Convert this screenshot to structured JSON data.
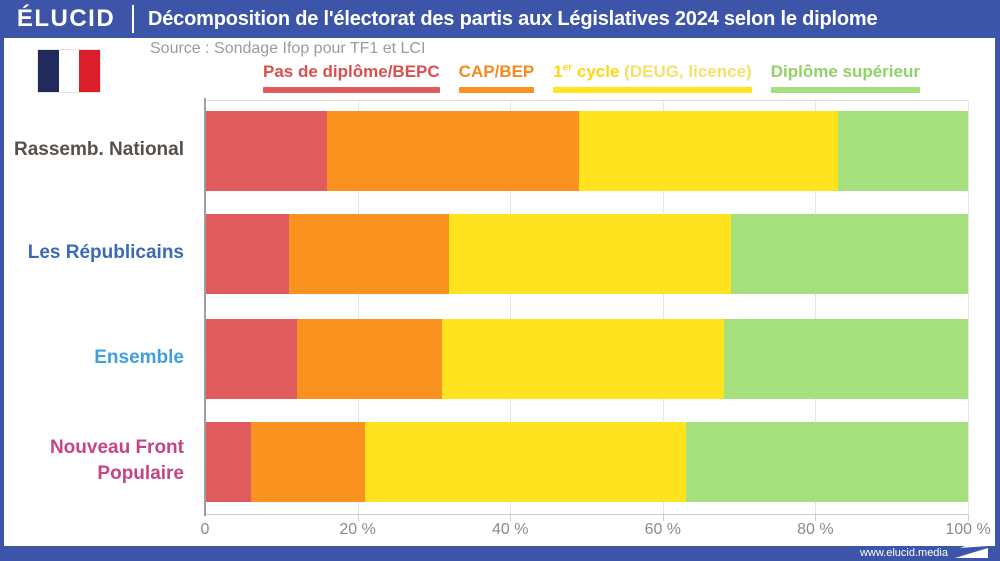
{
  "header": {
    "logo": "ÉLUCID",
    "title": "Décomposition de l'électorat des partis aux Législatives 2024 selon le diplome"
  },
  "source": "Source : Sondage Ifop pour TF1 et LCI",
  "legend": {
    "items": [
      {
        "text": "Pas de diplôme/BEPC",
        "text_color": "#D9504C",
        "bar_color": "#E05B5E"
      },
      {
        "text": "CAP/BEP",
        "text_color": "#F68A1E",
        "bar_color": "#F9921F"
      },
      {
        "pre": "1",
        "sup": "er",
        "mid": " cycle ",
        "paren": "(DEUG, licence)",
        "text_color": "#FFD60F",
        "paren_color": "#F6DF6A",
        "bar_color": "#FFE31F"
      },
      {
        "text": "Diplôme supérieur",
        "text_color": "#8FD268",
        "bar_color": "#A6DF7D"
      }
    ]
  },
  "chart_data": {
    "type": "bar",
    "orientation": "horizontal-stacked",
    "categories": [
      {
        "label": "Rassemb. National",
        "color": "#57504A"
      },
      {
        "label": "Les Républicains",
        "color": "#3A6AB8"
      },
      {
        "label": "Ensemble",
        "color": "#3FA0DC"
      },
      {
        "label": "Nouveau Front Populaire",
        "color": "#C64484"
      }
    ],
    "series": [
      {
        "name": "Pas de diplôme/BEPC",
        "color": "#E05B5E",
        "values": [
          16,
          11,
          12,
          6
        ]
      },
      {
        "name": "CAP/BEP",
        "color": "#F9921F",
        "values": [
          33,
          21,
          19,
          15
        ]
      },
      {
        "name": "1er cycle (DEUG, licence)",
        "color": "#FFE31F",
        "values": [
          34,
          37,
          37,
          42
        ]
      },
      {
        "name": "Diplôme supérieur",
        "color": "#A6DF7D",
        "values": [
          17,
          31,
          32,
          37
        ]
      }
    ],
    "x_ticks": [
      "0",
      "20 %",
      "40 %",
      "60 %",
      "80 %",
      "100 %"
    ],
    "xlim": [
      0,
      100
    ],
    "grid": true,
    "legend_position": "top"
  },
  "footer": {
    "url": "www.elucid.media"
  },
  "colors": {
    "accent_blue": "#3C55A8",
    "axis_text": "#8B8B8B",
    "source_text": "#9B9B9B"
  }
}
